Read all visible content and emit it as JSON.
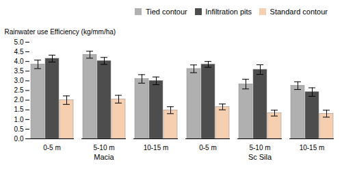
{
  "chart_data": {
    "type": "bar",
    "categories": [
      "0-5 m",
      "5-10 m",
      "10-15 m",
      "0-5 m",
      "5-10 m",
      "10-15 m"
    ],
    "annotations": [
      "Macia",
      "Sc Sila"
    ],
    "series": [
      {
        "name": "Tied contour",
        "color": "#b0b0b0",
        "values": [
          3.85,
          4.35,
          3.1,
          3.62,
          2.83,
          2.75
        ],
        "errors": [
          0.22,
          0.18,
          0.22,
          0.2,
          0.25,
          0.2
        ]
      },
      {
        "name": "Infiltration pits",
        "color": "#4d4d4d",
        "values": [
          4.15,
          4.03,
          3.0,
          3.85,
          3.58,
          2.42
        ],
        "errors": [
          0.18,
          0.18,
          0.2,
          0.15,
          0.25,
          0.22
        ]
      },
      {
        "name": "Standard contour",
        "color": "#f5cfb0",
        "values": [
          2.0,
          2.05,
          1.48,
          1.65,
          1.33,
          1.3
        ],
        "errors": [
          0.22,
          0.2,
          0.18,
          0.15,
          0.15,
          0.18
        ]
      }
    ],
    "ylabel": "Rainwater use Efficiency (kg/mm/ha)",
    "ylim": [
      0,
      5
    ],
    "yticks": [
      {
        "value": 0,
        "label": "0.0"
      },
      0.5,
      {
        "value": 1,
        "label": "1.0"
      },
      1.5,
      {
        "value": 2,
        "label": "2.0"
      },
      2.5,
      {
        "value": 3,
        "label": "3.0"
      },
      3.5,
      {
        "value": 4,
        "label": "4.0"
      },
      4.5,
      {
        "value": 5,
        "label": "5.0"
      }
    ],
    "grid": false,
    "legend": "top-right"
  }
}
